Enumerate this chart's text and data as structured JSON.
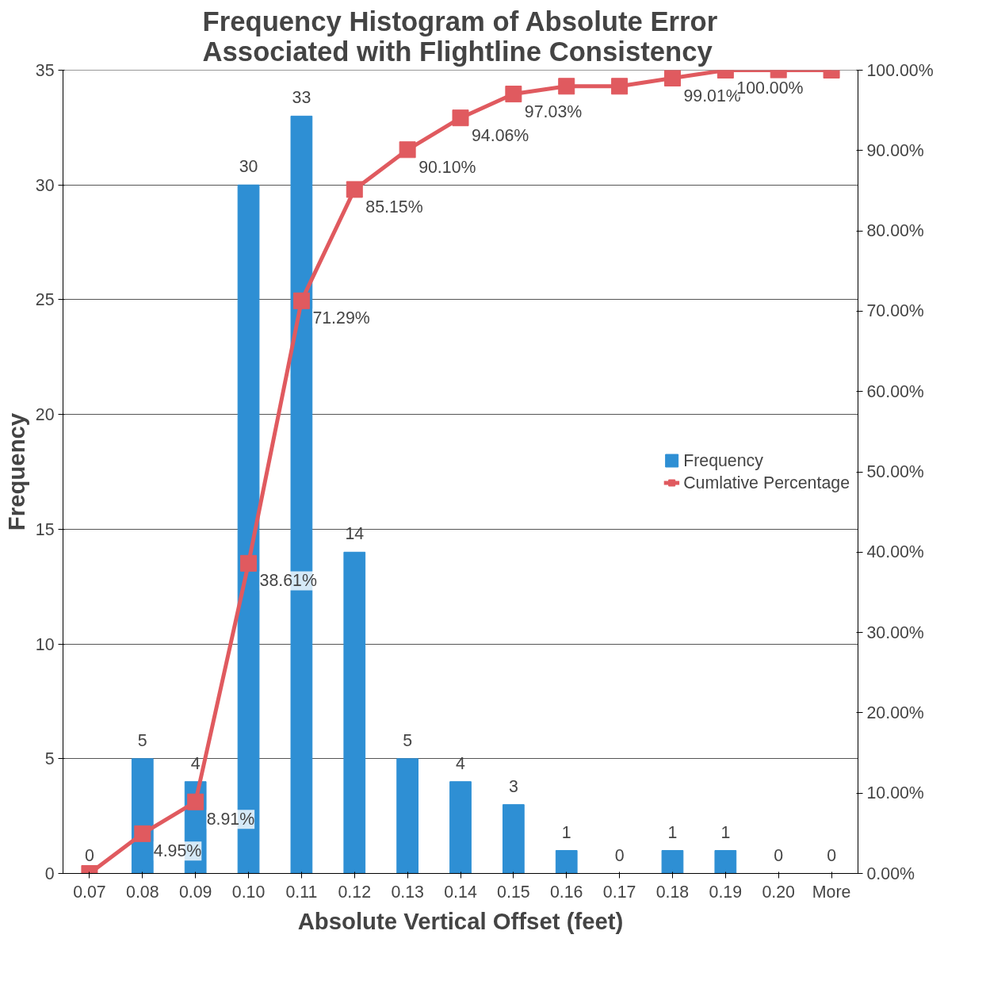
{
  "chart_data": {
    "type": "bar",
    "title": "Frequency Histogram of Absolute Error Associated with Flightline Consistency",
    "xlabel": "Absolute Vertical Offset (feet)",
    "ylabel": "Frequency",
    "categories": [
      "0.07",
      "0.08",
      "0.09",
      "0.10",
      "0.11",
      "0.12",
      "0.13",
      "0.14",
      "0.15",
      "0.16",
      "0.17",
      "0.18",
      "0.19",
      "0.20",
      "More"
    ],
    "series": [
      {
        "name": "Frequency",
        "color": "#2e8fd4",
        "values": [
          0,
          5,
          4,
          30,
          33,
          14,
          5,
          4,
          3,
          1,
          0,
          1,
          1,
          0,
          0
        ]
      },
      {
        "name": "Cumlative Percentage",
        "type": "line",
        "axis": "y2",
        "color": "#e05a5f",
        "marker": "square",
        "values": [
          0,
          4.95,
          8.91,
          38.61,
          71.29,
          85.15,
          90.1,
          94.06,
          97.03,
          98,
          98,
          99.01,
          100,
          100,
          100
        ],
        "value_labels": [
          null,
          "4.95%",
          "8.91%",
          "38.61%",
          "71.29%",
          "85.15%",
          "90.10%",
          "94.06%",
          "97.03%",
          null,
          null,
          "99.01%",
          "100.00%",
          null,
          null
        ]
      }
    ],
    "data_labels": true,
    "ylim": [
      0,
      35
    ],
    "yticks": [
      0,
      5,
      10,
      15,
      20,
      25,
      30,
      35
    ],
    "y2lim": [
      0,
      100
    ],
    "y2ticks": [
      {
        "value": 0,
        "label": "0.00%"
      },
      {
        "value": 10,
        "label": "10.00%"
      },
      {
        "value": 20,
        "label": "20.00%"
      },
      {
        "value": 30,
        "label": "30.00%"
      },
      {
        "value": 40,
        "label": "40.00%"
      },
      {
        "value": 50,
        "label": "50.00%"
      },
      {
        "value": 60,
        "label": "60.00%"
      },
      {
        "value": 70,
        "label": "70.00%"
      },
      {
        "value": 80,
        "label": "80.00%"
      },
      {
        "value": 90,
        "label": "90.00%"
      },
      {
        "value": 100,
        "label": "100.00%"
      }
    ],
    "grid": "y",
    "legend": "right"
  }
}
